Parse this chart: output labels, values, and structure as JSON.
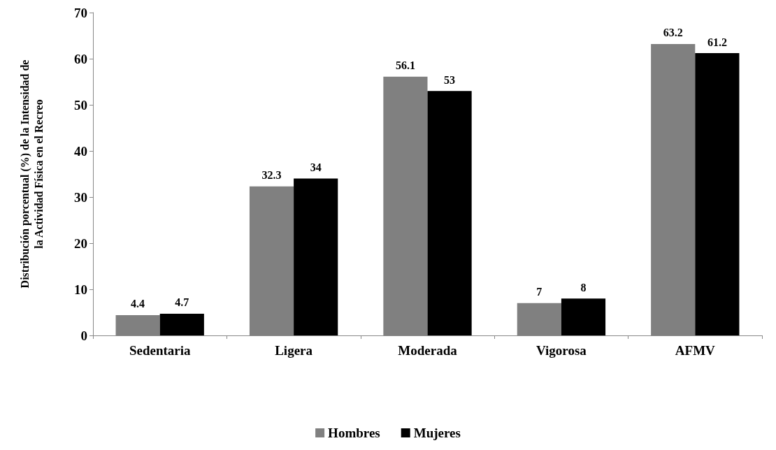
{
  "chart_data": {
    "type": "bar",
    "ylabel": "Distribución porcentual (%) de la Intensidad de la Actividad Física en el Recreo",
    "categories": [
      "Sedentaria",
      "Ligera",
      "Moderada",
      "Vigorosa",
      "AFMV"
    ],
    "series": [
      {
        "name": "Hombres",
        "color": "#808080",
        "values": [
          4.4,
          32.3,
          56.1,
          7,
          63.2
        ]
      },
      {
        "name": "Mujeres",
        "color": "#000000",
        "values": [
          4.7,
          34,
          53,
          8,
          61.2
        ]
      }
    ],
    "ylim": [
      0,
      70
    ],
    "yticks": [
      0,
      10,
      20,
      30,
      40,
      50,
      60,
      70
    ],
    "grid": false,
    "legend": "bottom",
    "data_labels": true
  }
}
